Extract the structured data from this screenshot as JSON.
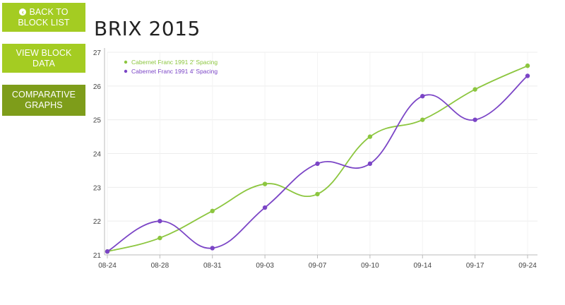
{
  "nav": {
    "back_label_line1": "BACK TO",
    "back_label_line2": "BLOCK LIST",
    "back_icon": "chevron-left-circle-icon",
    "view_label_line1": "VIEW BLOCK",
    "view_label_line2": "DATA",
    "comparative_label_line1": "COMPARATIVE",
    "comparative_label_line2": "GRAPHS"
  },
  "page": {
    "title": "BRIX 2015"
  },
  "colors": {
    "accent": "#a4cc22",
    "accent_dark": "#7e9d1a",
    "series1": "#8cc63f",
    "series2": "#7b45c6"
  },
  "chart_data": {
    "type": "line",
    "title": "",
    "xlabel": "",
    "ylabel": "",
    "x": [
      "08-24",
      "08-28",
      "08-31",
      "09-03",
      "09-07",
      "09-10",
      "09-14",
      "09-17",
      "09-24"
    ],
    "ylim": [
      21,
      27
    ],
    "yticks": [
      21,
      22,
      23,
      24,
      25,
      26,
      27
    ],
    "grid": true,
    "legend_position": "top-left",
    "series": [
      {
        "name": "Cabernet Franc 1991 2' Spacing",
        "color": "#8cc63f",
        "values": [
          21.1,
          21.5,
          22.3,
          23.1,
          22.8,
          24.5,
          25.0,
          25.9,
          26.6
        ]
      },
      {
        "name": "Cabernet Franc 1991 4' Spacing",
        "color": "#7b45c6",
        "values": [
          21.1,
          22.0,
          21.2,
          22.4,
          23.7,
          23.7,
          25.7,
          25.0,
          26.3
        ]
      }
    ]
  }
}
